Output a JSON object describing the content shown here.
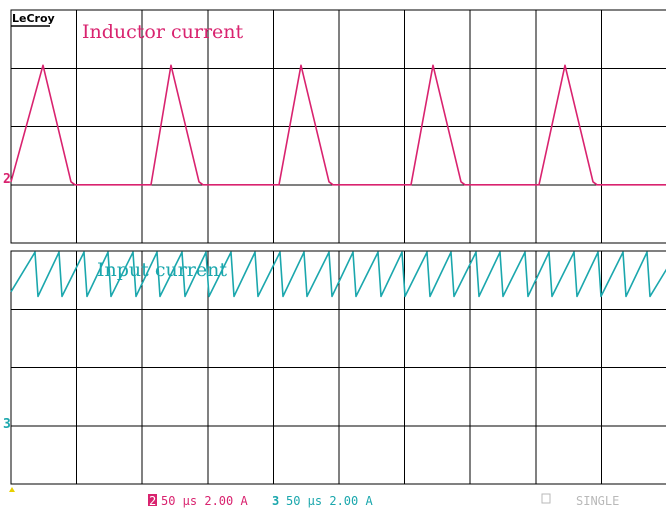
{
  "brand": "LeCroy",
  "colors": {
    "ch2": "#d9236f",
    "ch3": "#1ba7ad",
    "grid": "#000000",
    "status_dim": "#b9b9b9",
    "trigger": "#e8d000"
  },
  "chart_data": [
    {
      "type": "line",
      "channel": "2",
      "title": "Inductor current",
      "series": [
        {
          "x": [
            0,
            32,
            60,
            64,
            140,
            160,
            188,
            192,
            268,
            290,
            318,
            322,
            400,
            422,
            450,
            454,
            528,
            554,
            582,
            586,
            656
          ],
          "y": [
            0.05,
            2.05,
            0.05,
            0.0,
            0.0,
            2.05,
            0.05,
            0.0,
            0.0,
            2.05,
            0.05,
            0.0,
            0.0,
            2.05,
            0.05,
            0.0,
            0.0,
            2.05,
            0.05,
            0.0,
            0.0
          ]
        }
      ]
    },
    {
      "type": "line",
      "channel": "3",
      "title": "Input current",
      "series": [
        {
          "x": [
            0,
            24,
            27,
            48,
            51,
            73,
            76,
            97,
            100,
            122,
            125,
            146,
            149,
            171,
            174,
            195,
            198,
            220,
            223,
            244,
            247,
            269,
            272,
            293,
            296,
            318,
            321,
            342,
            345,
            367,
            370,
            391,
            394,
            416,
            419,
            440,
            443,
            465,
            468,
            489,
            492,
            514,
            517,
            538,
            541,
            563,
            566,
            587,
            590,
            612,
            615,
            636,
            639,
            656
          ],
          "y": [
            0.3,
            0.98,
            0.22,
            0.98,
            0.22,
            0.98,
            0.22,
            0.98,
            0.22,
            0.98,
            0.22,
            0.98,
            0.22,
            0.98,
            0.22,
            0.98,
            0.22,
            0.98,
            0.22,
            0.98,
            0.22,
            0.98,
            0.22,
            0.98,
            0.22,
            0.98,
            0.22,
            0.98,
            0.22,
            0.98,
            0.22,
            0.98,
            0.22,
            0.98,
            0.22,
            0.98,
            0.22,
            0.98,
            0.22,
            0.98,
            0.22,
            0.98,
            0.22,
            0.98,
            0.22,
            0.98,
            0.22,
            0.98,
            0.22,
            0.98,
            0.22,
            0.98,
            0.22,
            0.7
          ]
        }
      ]
    }
  ],
  "status_bar": {
    "ch2_number": "2",
    "ch2_text": "50 μs 2.00 A",
    "ch3_number": "3",
    "ch3_text": "50 μs 2.00 A",
    "mode": "SINGLE"
  }
}
